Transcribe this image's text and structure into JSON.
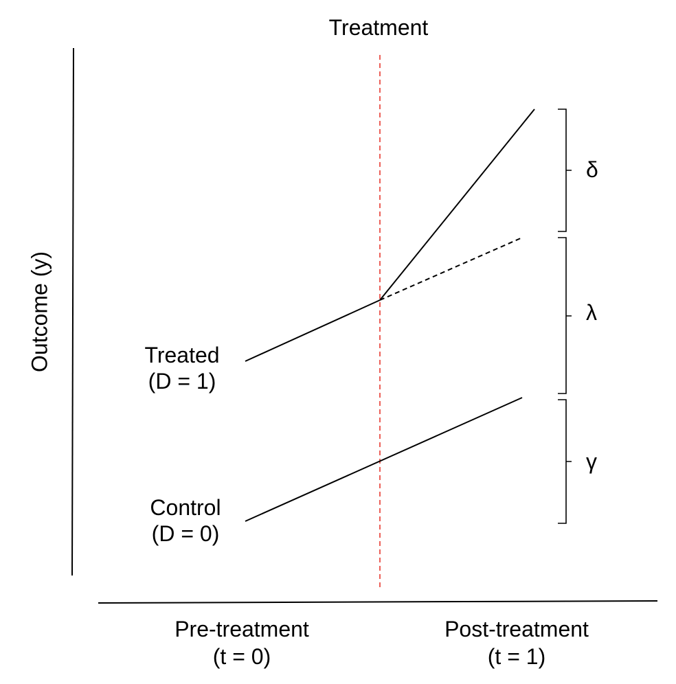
{
  "diagram": {
    "treatment_label": "Treatment",
    "y_axis_label": "Outcome (y)",
    "x_labels": {
      "pre_line1": "Pre-treatment",
      "pre_line2": "(t = 0)",
      "post_line1": "Post-treatment",
      "post_line2": "(t = 1)"
    },
    "groups": {
      "treated_line1": "Treated",
      "treated_line2": "(D = 1)",
      "control_line1": "Control",
      "control_line2": "(D = 0)"
    },
    "brackets": {
      "delta": "δ",
      "lambda": "λ",
      "gamma": "γ"
    },
    "colors": {
      "treatment_line": "#e8382f",
      "lines": "#000000"
    }
  }
}
